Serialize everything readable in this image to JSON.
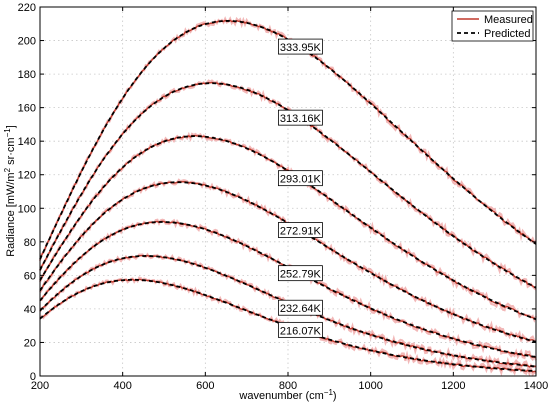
{
  "chart_data": {
    "type": "line",
    "title": "",
    "xlabel": "wavenumber (cm",
    "xlabel_sup": "−1",
    "xlabel_end": ")",
    "ylabel": "Radiance [mW/m",
    "ylabel_sup1": "2",
    "ylabel_mid": " sr·cm",
    "ylabel_sup2": "−1",
    "ylabel_end": "]",
    "xlim": [
      200,
      1400
    ],
    "ylim": [
      0,
      220
    ],
    "xticks": [
      200,
      400,
      600,
      800,
      1000,
      1200,
      1400
    ],
    "yticks": [
      0,
      20,
      40,
      60,
      80,
      100,
      120,
      140,
      160,
      180,
      200,
      220
    ],
    "grid": true,
    "legend": {
      "placement": "top-right",
      "entries": [
        {
          "name": "Measured",
          "color": "#c0392b",
          "style": "solid"
        },
        {
          "name": "Predicted",
          "color": "#000000",
          "style": "dashed"
        }
      ]
    },
    "series": [
      {
        "label": "333.95K",
        "temperature_K": 333.95
      },
      {
        "label": "313.16K",
        "temperature_K": 313.16
      },
      {
        "label": "293.01K",
        "temperature_K": 293.01
      },
      {
        "label": "272.91K",
        "temperature_K": 272.91
      },
      {
        "label": "252.79K",
        "temperature_K": 252.79
      },
      {
        "label": "232.64K",
        "temperature_K": 232.64
      },
      {
        "label": "216.07K",
        "temperature_K": 216.07
      }
    ],
    "colors": {
      "measured": "#c0392b",
      "predicted": "#000000",
      "noise": "#f2b8b8"
    }
  }
}
